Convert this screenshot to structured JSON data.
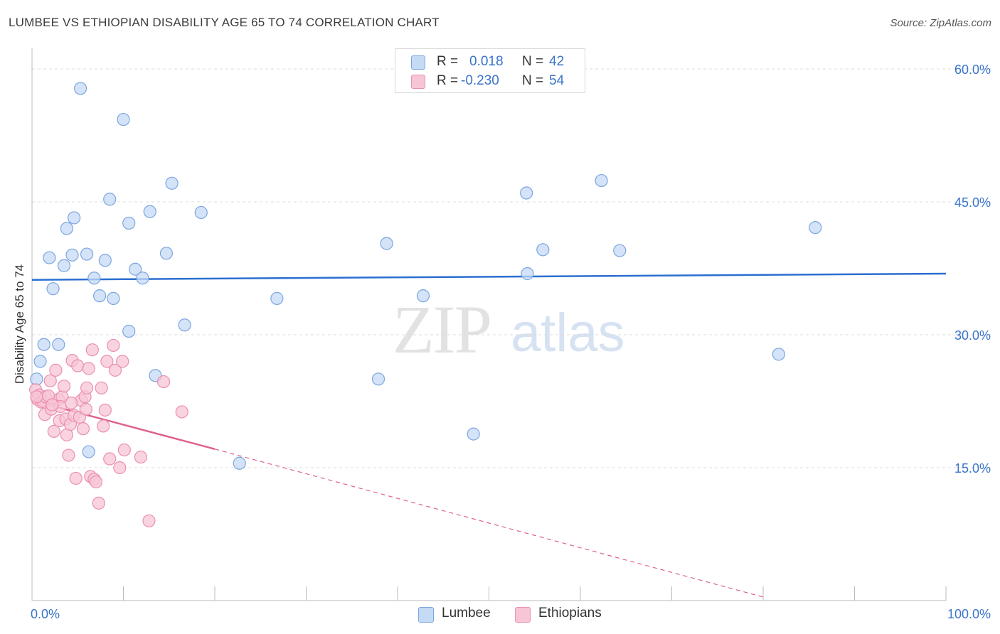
{
  "header": {
    "title": "LUMBEE VS ETHIOPIAN DISABILITY AGE 65 TO 74 CORRELATION CHART",
    "source": "Source: ZipAtlas.com"
  },
  "watermark": {
    "zip": "ZIP",
    "atlas": "atlas"
  },
  "colors": {
    "lumbee_fill": "#c5daf5",
    "lumbee_stroke": "#7aa6e0",
    "lumbee_line": "#2b6fd0",
    "eth_fill": "#f7c6d6",
    "eth_stroke": "#ea8fb0",
    "eth_line": "#e0608e",
    "tick": "#3a74c9",
    "grid": "#dcdcdc"
  },
  "legend": {
    "rows": [
      {
        "r_label": "R =",
        "r_value": "0.018",
        "n_label": "N =",
        "n_value": "42"
      },
      {
        "r_label": "R =",
        "r_value": "-0.230",
        "n_label": "N =",
        "n_value": "54"
      }
    ]
  },
  "chart_data": {
    "type": "scatter",
    "title": "LUMBEE VS ETHIOPIAN DISABILITY AGE 65 TO 74 CORRELATION CHART",
    "xlabel": "",
    "ylabel": "Disability Age 65 to 74",
    "xlim": [
      0,
      100
    ],
    "ylim": [
      0,
      60
    ],
    "x_tick_labels": [
      "0.0%",
      "100.0%"
    ],
    "y_ticks": [
      15,
      30,
      45,
      60
    ],
    "y_tick_labels": [
      "15.0%",
      "30.0%",
      "45.0%",
      "60.0%"
    ],
    "grid": true,
    "legend_position": "top-center",
    "series": [
      {
        "name": "Lumbee",
        "r": 0.018,
        "n": 42,
        "trend": {
          "x": [
            0,
            100
          ],
          "y": [
            36.2,
            36.9
          ]
        },
        "points": [
          [
            5.3,
            57.8
          ],
          [
            10.0,
            54.3
          ],
          [
            8.5,
            45.3
          ],
          [
            15.3,
            47.1
          ],
          [
            12.9,
            43.9
          ],
          [
            18.5,
            43.8
          ],
          [
            4.6,
            43.2
          ],
          [
            10.6,
            42.6
          ],
          [
            3.8,
            42.0
          ],
          [
            1.9,
            38.7
          ],
          [
            4.4,
            39.0
          ],
          [
            6.0,
            39.1
          ],
          [
            8.0,
            38.4
          ],
          [
            3.5,
            37.8
          ],
          [
            11.3,
            37.4
          ],
          [
            14.7,
            39.2
          ],
          [
            6.8,
            36.4
          ],
          [
            12.1,
            36.4
          ],
          [
            2.3,
            35.2
          ],
          [
            7.4,
            34.4
          ],
          [
            8.9,
            34.1
          ],
          [
            26.8,
            34.1
          ],
          [
            38.8,
            40.3
          ],
          [
            42.8,
            34.4
          ],
          [
            16.7,
            31.1
          ],
          [
            10.6,
            30.4
          ],
          [
            1.3,
            28.9
          ],
          [
            2.9,
            28.9
          ],
          [
            0.9,
            27.0
          ],
          [
            13.5,
            25.4
          ],
          [
            0.5,
            25.0
          ],
          [
            37.9,
            25.0
          ],
          [
            6.2,
            16.8
          ],
          [
            22.7,
            15.5
          ],
          [
            48.3,
            18.8
          ],
          [
            54.1,
            46.0
          ],
          [
            62.3,
            47.4
          ],
          [
            54.2,
            36.9
          ],
          [
            55.9,
            39.6
          ],
          [
            64.3,
            39.5
          ],
          [
            85.7,
            42.1
          ],
          [
            81.7,
            27.8
          ]
        ]
      },
      {
        "name": "Ethiopians",
        "r": -0.23,
        "n": 54,
        "trend": {
          "x": [
            0,
            20
          ],
          "y": [
            22.6,
            17.1
          ]
        },
        "trend_extension": {
          "x": [
            20,
            80
          ],
          "y": [
            17.1,
            0.4
          ]
        },
        "points": [
          [
            0.4,
            23.8
          ],
          [
            0.6,
            22.7
          ],
          [
            0.8,
            23.2
          ],
          [
            1.0,
            22.4
          ],
          [
            1.2,
            22.5
          ],
          [
            1.4,
            21.0
          ],
          [
            1.5,
            23.0
          ],
          [
            2.0,
            24.8
          ],
          [
            2.1,
            21.6
          ],
          [
            2.4,
            19.1
          ],
          [
            2.6,
            26.0
          ],
          [
            2.9,
            22.7
          ],
          [
            3.0,
            20.3
          ],
          [
            3.3,
            23.0
          ],
          [
            3.5,
            24.2
          ],
          [
            3.7,
            20.5
          ],
          [
            3.8,
            18.7
          ],
          [
            4.0,
            16.4
          ],
          [
            4.2,
            19.9
          ],
          [
            4.4,
            27.1
          ],
          [
            4.6,
            20.9
          ],
          [
            4.8,
            13.8
          ],
          [
            5.0,
            26.5
          ],
          [
            5.2,
            20.7
          ],
          [
            5.4,
            22.6
          ],
          [
            5.6,
            19.4
          ],
          [
            5.8,
            23.0
          ],
          [
            6.0,
            24.0
          ],
          [
            6.2,
            26.2
          ],
          [
            6.4,
            14.0
          ],
          [
            6.6,
            28.3
          ],
          [
            6.8,
            13.7
          ],
          [
            7.0,
            13.4
          ],
          [
            7.3,
            11.0
          ],
          [
            7.6,
            24.0
          ],
          [
            7.8,
            19.7
          ],
          [
            8.0,
            21.5
          ],
          [
            8.2,
            27.0
          ],
          [
            8.5,
            16.0
          ],
          [
            8.9,
            28.8
          ],
          [
            9.1,
            26.0
          ],
          [
            9.6,
            15.0
          ],
          [
            9.9,
            27.0
          ],
          [
            10.1,
            17.0
          ],
          [
            11.9,
            16.2
          ],
          [
            12.8,
            9.0
          ],
          [
            14.4,
            24.7
          ],
          [
            16.4,
            21.3
          ],
          [
            1.8,
            23.1
          ],
          [
            3.1,
            21.9
          ],
          [
            4.3,
            22.3
          ],
          [
            5.9,
            21.6
          ],
          [
            0.5,
            23.0
          ],
          [
            2.2,
            22.1
          ]
        ]
      }
    ]
  }
}
